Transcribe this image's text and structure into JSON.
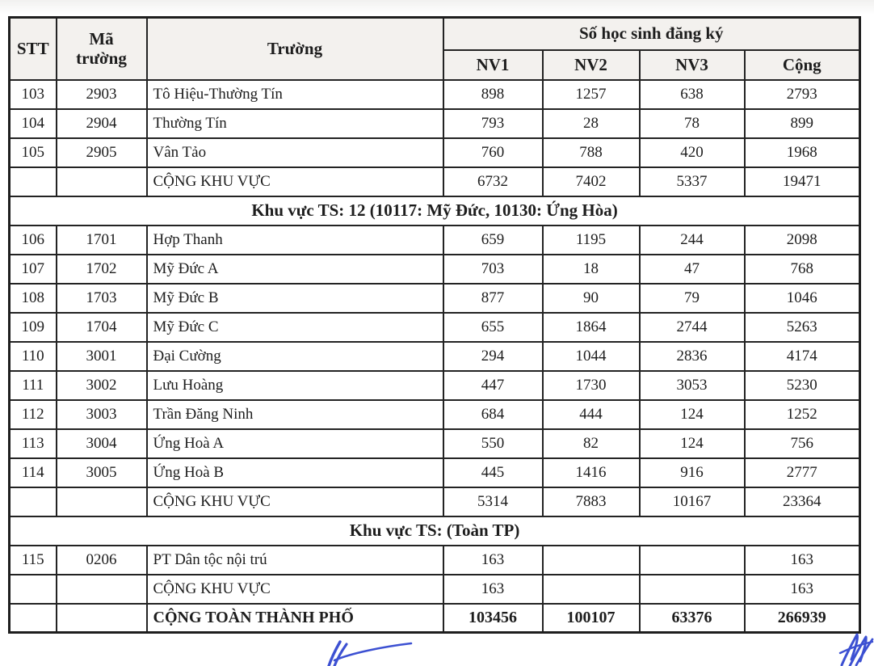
{
  "colors": {
    "pen_blue": "#3c50d2",
    "border_black": "#232323",
    "text_black": "#1d1d1d",
    "header_tint": "#f3f1ee"
  },
  "table": {
    "headers": {
      "stt": "STT",
      "ma_truong": "Mã trường",
      "truong": "Trường",
      "group": "Số học sinh đăng ký",
      "sub": [
        "NV1",
        "NV2",
        "NV3",
        "Cộng"
      ]
    },
    "rows": [
      {
        "type": "data",
        "stt": "103",
        "ma": "2903",
        "truong": "Tô Hiệu-Thường Tín",
        "nv1": "898",
        "nv2": "1257",
        "nv3": "638",
        "cong": "2793"
      },
      {
        "type": "data",
        "stt": "104",
        "ma": "2904",
        "truong": "Thường Tín",
        "nv1": "793",
        "nv2": "28",
        "nv3": "78",
        "cong": "899"
      },
      {
        "type": "data",
        "stt": "105",
        "ma": "2905",
        "truong": "Vân Tảo",
        "nv1": "760",
        "nv2": "788",
        "nv3": "420",
        "cong": "1968"
      },
      {
        "type": "subtotal",
        "stt": "",
        "ma": "",
        "truong": "CỘNG KHU VỰC",
        "nv1": "6732",
        "nv2": "7402",
        "nv3": "5337",
        "cong": "19471"
      },
      {
        "type": "section",
        "label": "Khu vực TS: 12 (10117: Mỹ Đức, 10130: Ứng Hòa)"
      },
      {
        "type": "data",
        "stt": "106",
        "ma": "1701",
        "truong": "Hợp Thanh",
        "nv1": "659",
        "nv2": "1195",
        "nv3": "244",
        "cong": "2098"
      },
      {
        "type": "data",
        "stt": "107",
        "ma": "1702",
        "truong": "Mỹ Đức A",
        "nv1": "703",
        "nv2": "18",
        "nv3": "47",
        "cong": "768"
      },
      {
        "type": "data",
        "stt": "108",
        "ma": "1703",
        "truong": "Mỹ Đức B",
        "nv1": "877",
        "nv2": "90",
        "nv3": "79",
        "cong": "1046"
      },
      {
        "type": "data",
        "stt": "109",
        "ma": "1704",
        "truong": "Mỹ Đức C",
        "nv1": "655",
        "nv2": "1864",
        "nv3": "2744",
        "cong": "5263"
      },
      {
        "type": "data",
        "stt": "110",
        "ma": "3001",
        "truong": "Đại Cường",
        "nv1": "294",
        "nv2": "1044",
        "nv3": "2836",
        "cong": "4174"
      },
      {
        "type": "data",
        "stt": "111",
        "ma": "3002",
        "truong": "Lưu Hoàng",
        "nv1": "447",
        "nv2": "1730",
        "nv3": "3053",
        "cong": "5230"
      },
      {
        "type": "data",
        "stt": "112",
        "ma": "3003",
        "truong": "Trần Đăng Ninh",
        "nv1": "684",
        "nv2": "444",
        "nv3": "124",
        "cong": "1252"
      },
      {
        "type": "data",
        "stt": "113",
        "ma": "3004",
        "truong": "Ứng Hoà A",
        "nv1": "550",
        "nv2": "82",
        "nv3": "124",
        "cong": "756"
      },
      {
        "type": "data",
        "stt": "114",
        "ma": "3005",
        "truong": "Ứng Hoà B",
        "nv1": "445",
        "nv2": "1416",
        "nv3": "916",
        "cong": "2777"
      },
      {
        "type": "subtotal",
        "stt": "",
        "ma": "",
        "truong": "CỘNG KHU VỰC",
        "nv1": "5314",
        "nv2": "7883",
        "nv3": "10167",
        "cong": "23364"
      },
      {
        "type": "section",
        "label": "Khu vực TS: (Toàn TP)"
      },
      {
        "type": "data",
        "stt": "115",
        "ma": "0206",
        "truong": "PT Dân tộc nội trú",
        "nv1": "163",
        "nv2": "",
        "nv3": "",
        "cong": "163"
      },
      {
        "type": "subtotal",
        "stt": "",
        "ma": "",
        "truong": "CỘNG KHU VỰC",
        "nv1": "163",
        "nv2": "",
        "nv3": "",
        "cong": "163"
      },
      {
        "type": "grandtotal",
        "stt": "",
        "ma": "",
        "truong": "CỘNG TOÀN THÀNH PHỐ",
        "nv1": "103456",
        "nv2": "100107",
        "nv3": "63376",
        "cong": "266939"
      }
    ]
  }
}
